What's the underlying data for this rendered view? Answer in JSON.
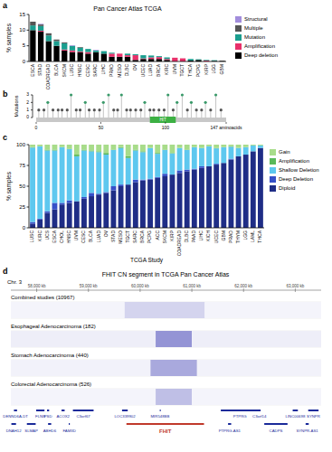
{
  "panel_labels": [
    "a",
    "b",
    "c",
    "d"
  ],
  "chart_data": [
    {
      "type": "bar",
      "stacked": true,
      "title": "Pan Cancer Atlas TCGA",
      "y_label": "% samples",
      "categories": [
        "ESCA",
        "STAD",
        "COADREAD",
        "BLCA",
        "SKCM",
        "LUSC",
        "HNSC",
        "CESC",
        "SARC",
        "LIHC",
        "PRAD",
        "MESO",
        "DLBC",
        "OV",
        "UCEC",
        "LUAD",
        "BRCA",
        "KIRC",
        "UVM",
        "TGCT",
        "THCA",
        "PCPG",
        "KIRP",
        "LGG",
        "GBM"
      ],
      "series": [
        {
          "name": "Deep deletion",
          "color": "#000000",
          "values": [
            10,
            9.5,
            6.5,
            5,
            3.5,
            3,
            3,
            2.5,
            3,
            2.5,
            1.5,
            1.5,
            1.5,
            0.5,
            0.8,
            0.8,
            0.8,
            0.5,
            0,
            0,
            0.3,
            0.5,
            0,
            0.2,
            0.2
          ]
        },
        {
          "name": "Amplification",
          "color": "#e8306a",
          "values": [
            0,
            0.3,
            0,
            0,
            0.3,
            0.5,
            0.2,
            0.5,
            0,
            0,
            1,
            1,
            0.5,
            1.5,
            0.2,
            0.5,
            0.6,
            0.3,
            1.2,
            1,
            0,
            0,
            0.3,
            0,
            0
          ]
        },
        {
          "name": "Mutation",
          "color": "#1b9e8f",
          "values": [
            1.5,
            1.5,
            1.8,
            1.5,
            2,
            1.5,
            1.2,
            1,
            0.5,
            0.8,
            0.3,
            0,
            0.5,
            0.3,
            1,
            0.6,
            0.3,
            0.5,
            0,
            0,
            0.5,
            0.2,
            0.2,
            0.2,
            0
          ]
        },
        {
          "name": "Multiple",
          "color": "#555555",
          "values": [
            1.2,
            0.5,
            0.7,
            0.5,
            0.3,
            0,
            0.2,
            0,
            0,
            0,
            0,
            0,
            0,
            0,
            0,
            0,
            0,
            0,
            0,
            0,
            0,
            0,
            0,
            0,
            0
          ]
        },
        {
          "name": "Structural",
          "color": "#a28ddc",
          "values": [
            0,
            0.2,
            0,
            0,
            0,
            0.2,
            0,
            0,
            0.2,
            0,
            0,
            0,
            0,
            0,
            0,
            0,
            0,
            0,
            0,
            0,
            0,
            0,
            0,
            0,
            0
          ]
        }
      ],
      "ylim": [
        0,
        15
      ],
      "yticks": [
        0,
        5,
        10,
        15
      ],
      "legend": "right"
    },
    {
      "type": "lollipop",
      "y_label": "Mutations",
      "x": [
        2,
        6,
        9,
        13,
        17,
        20,
        24,
        27,
        31,
        34,
        38,
        41,
        45,
        49,
        52,
        56,
        60,
        63,
        66,
        70,
        73,
        77,
        81,
        84,
        88,
        91,
        95,
        99,
        102,
        106,
        109,
        113,
        117,
        120,
        124,
        128,
        131,
        135,
        139,
        143
      ],
      "values": [
        1,
        1,
        2,
        1,
        1,
        1,
        1,
        3,
        1,
        1,
        2,
        1,
        1,
        1,
        2,
        3,
        1,
        1,
        3,
        1,
        1,
        1,
        1,
        2,
        1,
        1,
        1,
        1,
        3,
        1,
        2,
        3,
        1,
        2,
        1,
        1,
        2,
        1,
        3,
        1
      ],
      "colors": [
        "#555555",
        "#555555",
        "#3a9a6a",
        "#555555",
        "#555555",
        "#555555",
        "#555555",
        "#3a9a6a",
        "#555555",
        "#555555",
        "#3a9a6a",
        "#555555",
        "#555555",
        "#555555",
        "#3a9a6a",
        "#3a9a6a",
        "#555555",
        "#555555",
        "#3a9a6a",
        "#555555",
        "#555555",
        "#555555",
        "#555555",
        "#3a9a6a",
        "#555555",
        "#555555",
        "#555555",
        "#555555",
        "#3a9a6a",
        "#555555",
        "#3a9a6a",
        "#3a9a6a",
        "#555555",
        "#3a9a6a",
        "#555555",
        "#555555",
        "#3a9a6a",
        "#555555",
        "#3a9a6a",
        "#555555"
      ],
      "xlim": [
        0,
        147
      ],
      "xticks": [
        0,
        50,
        100,
        {
          "value": 147,
          "label": "147 aminoacids"
        }
      ],
      "ylim": [
        0,
        3
      ],
      "yticks": [
        0,
        1,
        2,
        3
      ],
      "domains": [
        {
          "label": "HIT",
          "start": 88,
          "end": 108,
          "color": "#3cb043"
        }
      ]
    },
    {
      "type": "bar",
      "stacked": true,
      "y_label": "% samples",
      "x_label": "TCGA Study",
      "categories": [
        "LUSC",
        "KIRC",
        "UCS",
        "ESCA",
        "CHOL",
        "HNSC",
        "UVM",
        "CESC",
        "BLCA",
        "LUAD",
        "OV",
        "STAD",
        "MESO",
        "TGCT",
        "SARC",
        "BRCA",
        "PCPG",
        "ACC",
        "SKCM",
        "KIRP",
        "COADREAD",
        "DLBC",
        "PAAD",
        "LIHC",
        "KICH",
        "UCEC",
        "GBM",
        "PRAD",
        "THYM",
        "LGG",
        "LAML",
        "THCA"
      ],
      "series": [
        {
          "name": "Diploid",
          "color": "#1f2d86",
          "values": [
            5,
            10,
            18,
            22,
            28,
            30,
            32,
            35,
            38,
            40,
            42,
            45,
            50,
            52,
            55,
            57,
            58,
            60,
            62,
            64,
            66,
            68,
            70,
            72,
            74,
            76,
            78,
            82,
            86,
            88,
            92,
            96
          ]
        },
        {
          "name": "Deep Deletion",
          "color": "#3650c8",
          "values": [
            2,
            1,
            2,
            8,
            2,
            3,
            0,
            2,
            4,
            1,
            1,
            5,
            2,
            0,
            3,
            1,
            1,
            1,
            3,
            0,
            3,
            2,
            1,
            2,
            0,
            1,
            0,
            1,
            0,
            0,
            0,
            0
          ]
        },
        {
          "name": "Shallow Deletion",
          "color": "#5ec8ef",
          "values": [
            89.5,
            87,
            73,
            63,
            67,
            61.5,
            54,
            56,
            50,
            50,
            45,
            43.5,
            44,
            32,
            35,
            33,
            37,
            28,
            28.5,
            25.5,
            27,
            23.5,
            26,
            22,
            24,
            18.5,
            19,
            14.5,
            10,
            9,
            7,
            3
          ]
        },
        {
          "name": "Amplification",
          "color": "#59b95a",
          "values": [
            0.5,
            0,
            1,
            1,
            0,
            0.5,
            2,
            1,
            1,
            1,
            2,
            0.5,
            1,
            2,
            1,
            1,
            0,
            1,
            0.5,
            0.5,
            0,
            0.5,
            0,
            0,
            0,
            0.5,
            0,
            0.5,
            0,
            0,
            0,
            0
          ]
        },
        {
          "name": "Gain",
          "color": "#a8dc8a",
          "values": [
            3,
            2,
            6,
            6,
            3,
            5,
            12,
            6,
            7,
            8,
            10,
            6,
            3,
            14,
            6,
            8,
            4,
            10,
            6,
            10,
            4,
            6,
            3,
            4,
            2,
            4,
            3,
            2,
            4,
            3,
            1,
            1
          ]
        }
      ],
      "ylim": [
        0,
        100
      ],
      "yticks": [
        0,
        25,
        50,
        75,
        100
      ],
      "legend": "right"
    }
  ],
  "genome_browser": {
    "title": "FHIT CN segment in TCGA Pan Cancer Atlas",
    "chromosome": "Chr. 3",
    "xlim": [
      57500,
      63500
    ],
    "xticks": [
      {
        "value": 58000,
        "label": "58,000 kb"
      },
      {
        "value": 59000,
        "label": "59,000 kb"
      },
      {
        "value": 60000,
        "label": "60,000 kb"
      },
      {
        "value": 61000,
        "label": "61,000 kb"
      },
      {
        "value": 62000,
        "label": "62,000 kb"
      },
      {
        "value": 63000,
        "label": "63,000 kb"
      }
    ],
    "tracks": [
      {
        "label": "Combined studies (10967)",
        "segments": [
          {
            "start": 57500,
            "end": 59700,
            "value": -0.05
          },
          {
            "start": 59700,
            "end": 61250,
            "value": -0.2
          },
          {
            "start": 61250,
            "end": 63500,
            "value": -0.05
          }
        ]
      },
      {
        "label": "Esophageal Adenocarcinoma (182)",
        "segments": [
          {
            "start": 57500,
            "end": 60300,
            "value": -0.08
          },
          {
            "start": 60300,
            "end": 61000,
            "value": -0.5
          },
          {
            "start": 61000,
            "end": 63500,
            "value": -0.08
          }
        ]
      },
      {
        "label": "Stomach Adenocarcinoma (440)",
        "segments": [
          {
            "start": 57500,
            "end": 60200,
            "value": -0.06
          },
          {
            "start": 60200,
            "end": 61100,
            "value": -0.4
          },
          {
            "start": 61100,
            "end": 63500,
            "value": -0.06
          }
        ]
      },
      {
        "label": "Colorectal Adenocarcinoma (526)",
        "segments": [
          {
            "start": 57500,
            "end": 60300,
            "value": -0.05
          },
          {
            "start": 60300,
            "end": 61000,
            "value": -0.3
          },
          {
            "start": 61000,
            "end": 63500,
            "value": -0.05
          }
        ]
      }
    ],
    "genes_top": [
      {
        "label": "DENND6A-DT",
        "start": 57560,
        "end": 57620
      },
      {
        "label": "FLNB",
        "start": 57990,
        "end": 58150
      },
      {
        "label": "PSD",
        "start": 58200,
        "end": 58240
      },
      {
        "label": "ACOX2",
        "start": 58480,
        "end": 58540
      },
      {
        "label": "C3orf67",
        "start": 58700,
        "end": 59100
      },
      {
        "label": "LOC339902",
        "start": 59650,
        "end": 59760
      },
      {
        "label": "MIR548BB",
        "start": 60380,
        "end": 60390
      },
      {
        "label": "PTPRG",
        "start": 61560,
        "end": 62300
      },
      {
        "label": "C3orf14",
        "start": 62280,
        "end": 62330
      },
      {
        "label": "LINC00698",
        "start": 62950,
        "end": 63050
      },
      {
        "label": "SYNPR",
        "start": 63250,
        "end": 63450
      }
    ],
    "genes_bottom": [
      {
        "label": "DNAH12",
        "start": 57510,
        "end": 57600
      },
      {
        "label": "SLMAP",
        "start": 57810,
        "end": 57980
      },
      {
        "label": "ABHD6",
        "start": 58220,
        "end": 58280
      },
      {
        "label": "FAM3D",
        "start": 58620,
        "end": 58640
      },
      {
        "label": "FHIT",
        "start": 59735,
        "end": 61235,
        "color": "#c0392b"
      },
      {
        "label": "PTPRG-AS1",
        "start": 61700,
        "end": 61760
      },
      {
        "label": "CADPS",
        "start": 62400,
        "end": 62850
      },
      {
        "label": "SYNPR-AS1",
        "start": 63200,
        "end": 63260
      }
    ]
  }
}
